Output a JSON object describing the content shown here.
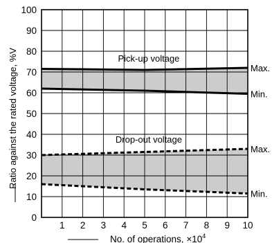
{
  "chart_data": {
    "type": "line",
    "xlabel": "No. of operations, ×10",
    "xlabel_exponent": "4",
    "ylabel": "Ratio against the rated voltage, %V",
    "xlim": [
      0,
      10
    ],
    "ylim": [
      0,
      100
    ],
    "xticks": [
      "1",
      "2",
      "3",
      "4",
      "5",
      "6",
      "7",
      "8",
      "9",
      "10"
    ],
    "yticks": [
      "0",
      "10",
      "20",
      "30",
      "40",
      "50",
      "60",
      "70",
      "80",
      "90",
      "100"
    ],
    "grid": true,
    "bands": [
      {
        "label": "Pick-up voltage",
        "style": "solid",
        "fill": "#cccccc",
        "upper": {
          "label": "Max.",
          "x": [
            0,
            5,
            10
          ],
          "y": [
            71.5,
            71,
            72
          ]
        },
        "lower": {
          "label": "Min.",
          "x": [
            0,
            5,
            10
          ],
          "y": [
            62,
            61,
            59.5
          ]
        }
      },
      {
        "label": "Drop-out voltage",
        "style": "dashed",
        "fill": "#cccccc",
        "upper": {
          "label": "Max.",
          "x": [
            0,
            5,
            10
          ],
          "y": [
            30,
            31.5,
            33
          ]
        },
        "lower": {
          "label": "Min.",
          "x": [
            0,
            5,
            10
          ],
          "y": [
            16,
            13.5,
            11.5
          ]
        }
      }
    ]
  }
}
